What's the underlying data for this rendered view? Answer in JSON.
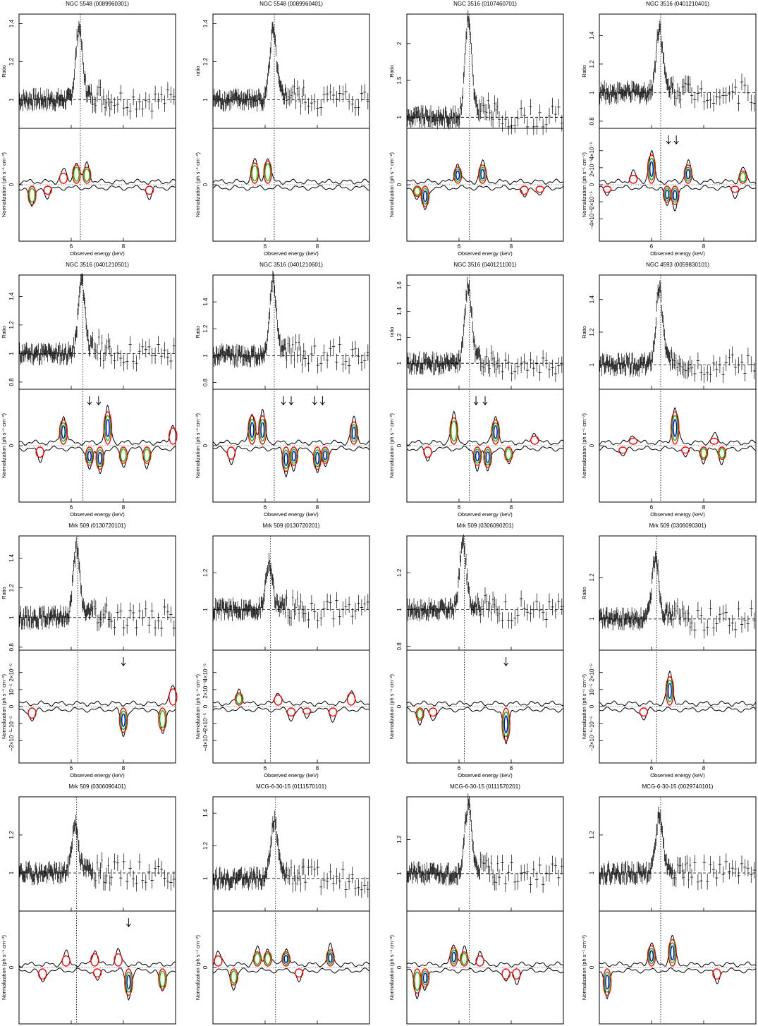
{
  "figure": {
    "xlabel": "Observed energy (keV)",
    "colors": {
      "data": "#000000",
      "contour_outer": "#ff0000",
      "contour_mid": "#00c000",
      "contour_inner": "#0000ff"
    }
  },
  "chart_data": [
    {
      "type": "line",
      "title": "NGC 5548 (0089960301)",
      "ratio_ylabel": "Ratio",
      "ratio_ylim": [
        0.85,
        1.45
      ],
      "ratio_yticks": [
        "1",
        "1.2",
        "1.4"
      ],
      "line_energy": 6.35,
      "peak_ratio": 1.37,
      "baseline": 1.0,
      "norm_yticks": [
        "2×10⁻⁵",
        "0",
        "−2×10⁻⁵"
      ],
      "xticks": [
        "6",
        "8"
      ],
      "positive_features": [
        {
          "x": 6.2,
          "h": 0.9,
          "level": 2
        },
        {
          "x": 6.6,
          "h": 0.8,
          "level": 2
        },
        {
          "x": 5.7,
          "h": 0.5,
          "level": 1
        }
      ],
      "negative_features": [
        {
          "x": 4.5,
          "h": 0.9,
          "level": 2
        },
        {
          "x": 5.1,
          "h": 0.4,
          "level": 1
        },
        {
          "x": 9.0,
          "h": 0.4,
          "level": 1
        }
      ],
      "arrows": []
    },
    {
      "type": "line",
      "title": "NGC 5548 (0089960401)",
      "ratio_ylabel": "ratio",
      "ratio_ylim": [
        0.85,
        1.45
      ],
      "ratio_yticks": [
        "1",
        "1.2",
        "1.4"
      ],
      "line_energy": 6.35,
      "peak_ratio": 1.35,
      "baseline": 1.0,
      "norm_yticks": [
        "2×10⁻⁵",
        "0",
        "−2×10⁻⁵"
      ],
      "xticks": [
        "6",
        "8"
      ],
      "positive_features": [
        {
          "x": 5.6,
          "h": 1.0,
          "level": 2
        },
        {
          "x": 6.1,
          "h": 1.1,
          "level": 2
        }
      ],
      "negative_features": [],
      "arrows": []
    },
    {
      "type": "line",
      "title": "NGC 3516 (0107460701)",
      "ratio_ylabel": "Ratio",
      "ratio_ylim": [
        0.85,
        2.4
      ],
      "ratio_yticks": [
        "1",
        "1.5",
        "2"
      ],
      "line_energy": 6.4,
      "peak_ratio": 2.3,
      "baseline": 1.0,
      "norm_yticks": [
        "2×10⁻⁵",
        "0",
        "−2×10⁻⁵"
      ],
      "xticks": [
        "6",
        "8"
      ],
      "positive_features": [
        {
          "x": 5.95,
          "h": 0.8,
          "level": 3
        },
        {
          "x": 6.9,
          "h": 0.9,
          "level": 3
        }
      ],
      "negative_features": [
        {
          "x": 4.7,
          "h": 1.0,
          "level": 3
        },
        {
          "x": 4.4,
          "h": 0.5,
          "level": 2
        },
        {
          "x": 8.5,
          "h": 0.4,
          "level": 1
        },
        {
          "x": 9.1,
          "h": 0.3,
          "level": 1
        }
      ],
      "arrows": []
    },
    {
      "type": "line",
      "title": "NGC 3516 (0401210401)",
      "ratio_ylabel": "Ratio",
      "ratio_ylim": [
        0.75,
        1.55
      ],
      "ratio_yticks": [
        "0.8",
        "1",
        "1.2",
        "1.4"
      ],
      "line_energy": 6.35,
      "peak_ratio": 1.45,
      "baseline": 1.0,
      "norm_yticks": [
        "4×10⁻⁵",
        "2×10⁻⁵",
        "0",
        "−2×10⁻⁵",
        "−4×10⁻⁵"
      ],
      "xticks": [
        "6",
        "8"
      ],
      "positive_features": [
        {
          "x": 6.0,
          "h": 1.4,
          "level": 3
        },
        {
          "x": 7.4,
          "h": 0.9,
          "level": 3
        },
        {
          "x": 5.3,
          "h": 0.4,
          "level": 1
        },
        {
          "x": 9.5,
          "h": 0.6,
          "level": 2
        }
      ],
      "negative_features": [
        {
          "x": 6.9,
          "h": 0.9,
          "level": 3
        },
        {
          "x": 6.6,
          "h": 0.8,
          "level": 3
        },
        {
          "x": 4.3,
          "h": 0.3,
          "level": 1
        },
        {
          "x": 9.2,
          "h": 0.3,
          "level": 1
        }
      ],
      "arrows": [
        6.65,
        6.95
      ]
    },
    {
      "type": "line",
      "title": "NGC 3516 (0401210501)",
      "ratio_ylabel": "Ratio",
      "ratio_ylim": [
        0.75,
        1.55
      ],
      "ratio_yticks": [
        "0.8",
        "1",
        "1.2",
        "1.4"
      ],
      "line_energy": 6.45,
      "peak_ratio": 1.5,
      "baseline": 1.0,
      "norm_yticks": [
        "2×10⁻⁵",
        "0",
        "−2×10⁻⁵"
      ],
      "xticks": [
        "6",
        "8"
      ],
      "positive_features": [
        {
          "x": 5.7,
          "h": 1.2,
          "level": 3
        },
        {
          "x": 7.4,
          "h": 1.6,
          "level": 3
        },
        {
          "x": 9.9,
          "h": 0.8,
          "level": 1
        }
      ],
      "negative_features": [
        {
          "x": 6.7,
          "h": 0.9,
          "level": 3
        },
        {
          "x": 7.1,
          "h": 1.1,
          "level": 3
        },
        {
          "x": 8.0,
          "h": 0.8,
          "level": 2
        },
        {
          "x": 8.9,
          "h": 0.8,
          "level": 2
        },
        {
          "x": 4.8,
          "h": 0.5,
          "level": 1
        }
      ],
      "arrows": [
        6.7,
        7.05
      ]
    },
    {
      "type": "line",
      "title": "NGC 3516 (0401210601)",
      "ratio_ylabel": "Ratio",
      "ratio_ylim": [
        0.75,
        1.6
      ],
      "ratio_yticks": [
        "0.8",
        "1",
        "1.2",
        "1.4"
      ],
      "line_energy": 6.35,
      "peak_ratio": 1.55,
      "baseline": 1.0,
      "norm_yticks": [
        "2×10⁻⁵",
        "0",
        "−2×10⁻⁵"
      ],
      "xticks": [
        "6",
        "8"
      ],
      "positive_features": [
        {
          "x": 5.5,
          "h": 1.4,
          "level": 3
        },
        {
          "x": 5.9,
          "h": 1.4,
          "level": 3
        },
        {
          "x": 9.4,
          "h": 1.1,
          "level": 3
        }
      ],
      "negative_features": [
        {
          "x": 6.8,
          "h": 1.2,
          "level": 3
        },
        {
          "x": 7.1,
          "h": 0.9,
          "level": 3
        },
        {
          "x": 8.0,
          "h": 1.1,
          "level": 3
        },
        {
          "x": 8.3,
          "h": 0.8,
          "level": 3
        },
        {
          "x": 4.7,
          "h": 0.6,
          "level": 1
        }
      ],
      "arrows": [
        6.7,
        7.0,
        7.9,
        8.2
      ]
    },
    {
      "type": "line",
      "title": "NGC 3516 (0401211001)",
      "ratio_ylabel": "ratio",
      "ratio_ylim": [
        0.8,
        1.68
      ],
      "ratio_yticks": [
        "1",
        "1.2",
        "1.4",
        "1.6"
      ],
      "line_energy": 6.4,
      "peak_ratio": 1.6,
      "baseline": 1.0,
      "norm_yticks": [
        "2×10⁻⁵",
        "0",
        "−2×10⁻⁵"
      ],
      "xticks": [
        "6",
        "8"
      ],
      "positive_features": [
        {
          "x": 5.8,
          "h": 1.3,
          "level": 2
        },
        {
          "x": 7.4,
          "h": 1.2,
          "level": 3
        },
        {
          "x": 8.9,
          "h": 0.4,
          "level": 1
        }
      ],
      "negative_features": [
        {
          "x": 6.7,
          "h": 0.9,
          "level": 3
        },
        {
          "x": 7.1,
          "h": 1.0,
          "level": 3
        },
        {
          "x": 7.9,
          "h": 0.7,
          "level": 2
        },
        {
          "x": 4.8,
          "h": 0.5,
          "level": 1
        }
      ],
      "arrows": [
        6.65,
        7.0
      ]
    },
    {
      "type": "line",
      "title": "NGC 4593 (0059830101)",
      "ratio_ylabel": "Ratio",
      "ratio_ylim": [
        0.85,
        1.55
      ],
      "ratio_yticks": [
        "1",
        "1.2",
        "1.4"
      ],
      "line_energy": 6.35,
      "peak_ratio": 1.45,
      "baseline": 1.0,
      "norm_yticks": [
        "2×10⁻⁵",
        "0",
        "−2×10⁻⁵"
      ],
      "xticks": [
        "6",
        "8"
      ],
      "positive_features": [
        {
          "x": 6.9,
          "h": 1.6,
          "level": 3
        },
        {
          "x": 5.3,
          "h": 0.3,
          "level": 1
        },
        {
          "x": 8.4,
          "h": 0.3,
          "level": 1
        }
      ],
      "negative_features": [
        {
          "x": 8.0,
          "h": 0.6,
          "level": 2
        },
        {
          "x": 8.7,
          "h": 0.6,
          "level": 2
        },
        {
          "x": 7.3,
          "h": 0.3,
          "level": 1
        },
        {
          "x": 4.9,
          "h": 0.3,
          "level": 1
        }
      ],
      "arrows": []
    },
    {
      "type": "line",
      "title": "Mrk 509 (0130720101)",
      "ratio_ylabel": "Ratio",
      "ratio_ylim": [
        0.78,
        1.55
      ],
      "ratio_yticks": [
        "0.8",
        "1",
        "1.2",
        "1.4"
      ],
      "line_energy": 6.25,
      "peak_ratio": 1.45,
      "baseline": 1.0,
      "norm_yticks": [
        "2×10⁻⁵",
        "10⁻⁵",
        "0",
        "−10⁻⁵",
        "−2×10⁻⁵"
      ],
      "xticks": [
        "6",
        "8"
      ],
      "positive_features": [
        {
          "x": 9.9,
          "h": 0.8,
          "level": 1
        }
      ],
      "negative_features": [
        {
          "x": 8.0,
          "h": 1.2,
          "level": 3
        },
        {
          "x": 9.5,
          "h": 1.1,
          "level": 2
        },
        {
          "x": 4.5,
          "h": 0.5,
          "level": 1
        }
      ],
      "arrows": [
        8.0
      ]
    },
    {
      "type": "line",
      "title": "Mrk 509 (0130720201)",
      "ratio_ylabel": "",
      "ratio_ylim": [
        0.78,
        1.4
      ],
      "ratio_yticks": [
        "1",
        "1.2"
      ],
      "line_energy": 6.2,
      "peak_ratio": 1.25,
      "baseline": 1.0,
      "norm_yticks": [
        "4×10⁻⁵",
        "2×10⁻⁵",
        "0",
        "−2×10⁻⁵",
        "−4×10⁻⁵"
      ],
      "xticks": [
        "6",
        "8"
      ],
      "positive_features": [
        {
          "x": 5.0,
          "h": 0.6,
          "level": 2
        },
        {
          "x": 6.5,
          "h": 0.5,
          "level": 1
        },
        {
          "x": 9.3,
          "h": 0.6,
          "level": 1
        }
      ],
      "negative_features": [
        {
          "x": 7.0,
          "h": 0.4,
          "level": 1
        },
        {
          "x": 7.6,
          "h": 0.3,
          "level": 1
        },
        {
          "x": 8.6,
          "h": 0.4,
          "level": 1
        }
      ],
      "arrows": []
    },
    {
      "type": "line",
      "title": "Mrk 509 (0306090201)",
      "ratio_ylabel": "",
      "ratio_ylim": [
        0.78,
        1.4
      ],
      "ratio_yticks": [
        "0.8",
        "1",
        "1.2"
      ],
      "line_energy": 6.2,
      "peak_ratio": 1.35,
      "baseline": 1.0,
      "norm_yticks": [
        "10⁻⁵",
        "0",
        "−10⁻⁵"
      ],
      "xticks": [
        "6",
        "8"
      ],
      "positive_features": [],
      "negative_features": [
        {
          "x": 7.8,
          "h": 1.6,
          "level": 3
        },
        {
          "x": 4.5,
          "h": 0.6,
          "level": 2
        },
        {
          "x": 5.0,
          "h": 0.4,
          "level": 1
        }
      ],
      "arrows": [
        7.8
      ]
    },
    {
      "type": "line",
      "title": "Mrk 509 (0306090301)",
      "ratio_ylabel": "Ratio",
      "ratio_ylim": [
        0.85,
        1.4
      ],
      "ratio_yticks": [
        "1",
        "1.2"
      ],
      "line_energy": 6.2,
      "peak_ratio": 1.3,
      "baseline": 1.0,
      "norm_yticks": [
        "2×10⁻⁵",
        "10⁻⁵",
        "0",
        "−10⁻⁵",
        "−2×10⁻⁵"
      ],
      "xticks": [
        "6",
        "8"
      ],
      "positive_features": [
        {
          "x": 6.7,
          "h": 1.4,
          "level": 3
        }
      ],
      "negative_features": [
        {
          "x": 5.7,
          "h": 0.4,
          "level": 1
        }
      ],
      "arrows": []
    },
    {
      "type": "line",
      "title": "Mrk 509 (0306090401)",
      "ratio_ylabel": "",
      "ratio_ylim": [
        0.8,
        1.4
      ],
      "ratio_yticks": [
        "1",
        "1.2"
      ],
      "line_energy": 6.2,
      "peak_ratio": 1.25,
      "baseline": 1.0,
      "norm_yticks": [
        "10⁻⁵",
        "0",
        "−10⁻⁵"
      ],
      "xticks": [
        "6",
        "8"
      ],
      "positive_features": [
        {
          "x": 5.8,
          "h": 0.5,
          "level": 1
        },
        {
          "x": 6.9,
          "h": 0.6,
          "level": 1
        },
        {
          "x": 7.8,
          "h": 0.6,
          "level": 1
        }
      ],
      "negative_features": [
        {
          "x": 8.2,
          "h": 1.3,
          "level": 3
        },
        {
          "x": 9.5,
          "h": 1.0,
          "level": 2
        },
        {
          "x": 7.0,
          "h": 0.4,
          "level": 1
        },
        {
          "x": 4.9,
          "h": 0.5,
          "level": 1
        }
      ],
      "arrows": [
        8.2
      ]
    },
    {
      "type": "line",
      "title": "MCG-6-30-15 (0111570101)",
      "ratio_ylabel": "",
      "ratio_ylim": [
        0.8,
        1.5
      ],
      "ratio_yticks": [
        "1",
        "1.2",
        "1.4"
      ],
      "line_energy": 6.4,
      "peak_ratio": 1.35,
      "baseline": 1.0,
      "norm_yticks": [
        "2×10⁻⁵",
        "0",
        "−2×10⁻⁵"
      ],
      "xticks": [
        "6",
        "8"
      ],
      "positive_features": [
        {
          "x": 5.7,
          "h": 0.7,
          "level": 2
        },
        {
          "x": 6.1,
          "h": 0.7,
          "level": 2
        },
        {
          "x": 6.8,
          "h": 0.7,
          "level": 3
        },
        {
          "x": 8.5,
          "h": 0.8,
          "level": 3
        },
        {
          "x": 4.2,
          "h": 0.5,
          "level": 1
        }
      ],
      "negative_features": [
        {
          "x": 4.8,
          "h": 0.8,
          "level": 2
        },
        {
          "x": 7.3,
          "h": 0.4,
          "level": 1
        }
      ],
      "arrows": []
    },
    {
      "type": "line",
      "title": "MCG-6-30-15 (0111570201)",
      "ratio_ylabel": "",
      "ratio_ylim": [
        0.78,
        1.45
      ],
      "ratio_yticks": [
        "1",
        "1.2"
      ],
      "line_energy": 6.4,
      "peak_ratio": 1.4,
      "baseline": 1.0,
      "norm_yticks": [
        "2×10⁻⁵",
        "0",
        "−2×10⁻⁵"
      ],
      "xticks": [
        "6",
        "8"
      ],
      "positive_features": [
        {
          "x": 5.8,
          "h": 0.9,
          "level": 3
        },
        {
          "x": 6.2,
          "h": 0.7,
          "level": 2
        },
        {
          "x": 6.8,
          "h": 0.5,
          "level": 1
        }
      ],
      "negative_features": [
        {
          "x": 4.4,
          "h": 1.2,
          "level": 2
        },
        {
          "x": 4.7,
          "h": 0.9,
          "level": 3
        },
        {
          "x": 7.8,
          "h": 0.5,
          "level": 1
        },
        {
          "x": 8.2,
          "h": 0.5,
          "level": 1
        }
      ],
      "arrows": []
    },
    {
      "type": "line",
      "title": "MCG-6-30-15 (0029740101)",
      "ratio_ylabel": "",
      "ratio_ylim": [
        0.8,
        1.4
      ],
      "ratio_yticks": [
        "1",
        "1.2"
      ],
      "line_energy": 6.35,
      "peak_ratio": 1.3,
      "baseline": 1.0,
      "norm_yticks": [
        "2×10⁻⁵",
        "0",
        "−2×10⁻⁵"
      ],
      "xticks": [
        "6",
        "8"
      ],
      "positive_features": [
        {
          "x": 6.0,
          "h": 1.0,
          "level": 3
        },
        {
          "x": 6.8,
          "h": 1.3,
          "level": 3
        }
      ],
      "negative_features": [
        {
          "x": 4.3,
          "h": 1.3,
          "level": 3
        },
        {
          "x": 8.5,
          "h": 0.5,
          "level": 1
        }
      ],
      "arrows": []
    }
  ]
}
